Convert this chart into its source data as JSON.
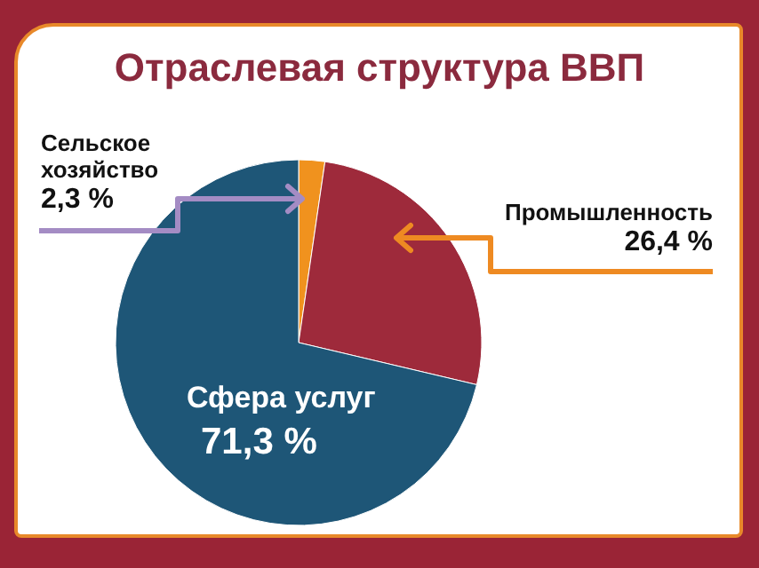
{
  "chart_data": {
    "type": "pie",
    "title": "Отраслевая структура ВВП",
    "categories": [
      "Сельское хозяйство",
      "Промышленность",
      "Сфера услуг"
    ],
    "values": [
      2.3,
      26.4,
      71.3
    ],
    "colors": [
      "#f0921e",
      "#9e2a3b",
      "#1e5677"
    ],
    "value_labels": [
      "2,3 %",
      "26,4 %",
      "71,3 %"
    ],
    "legend": false
  }
}
